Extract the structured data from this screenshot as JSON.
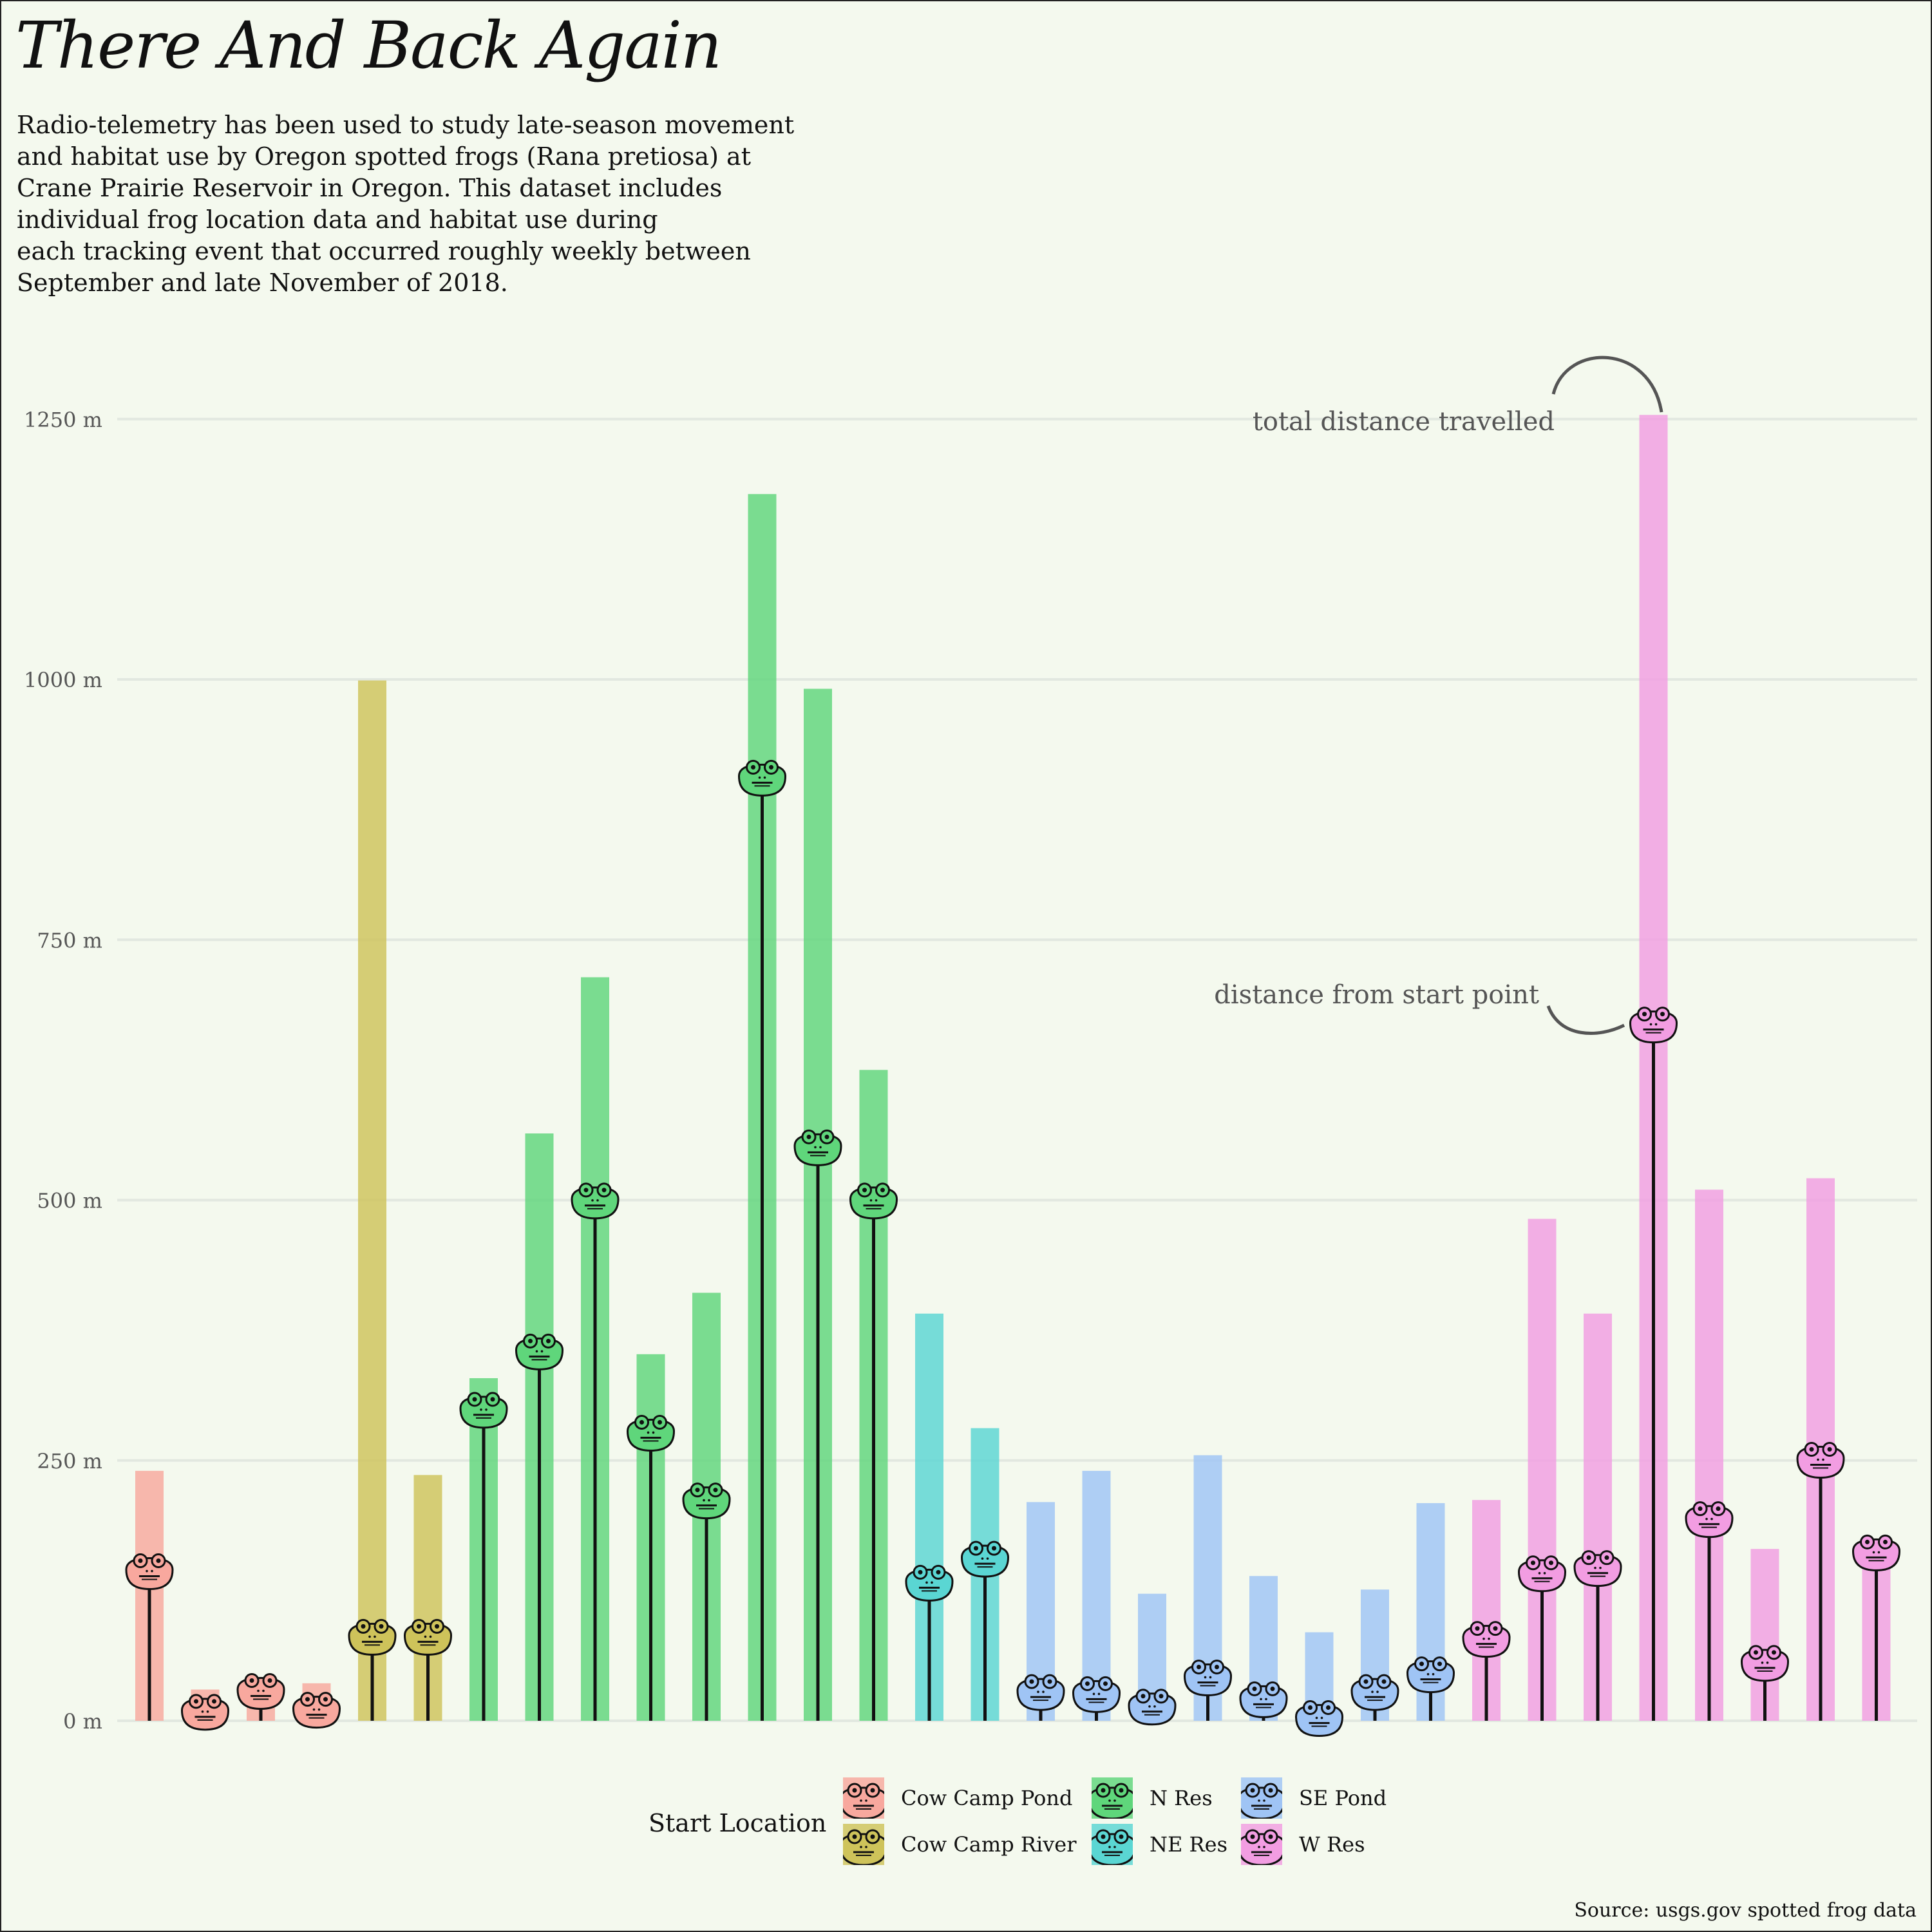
{
  "title": "There And Back Again",
  "subtitle": "Radio-telemetry has been used to study late-season movement\nand habitat use by Oregon spotted frogs (Rana pretiosa) at\nCrane Prairie Reservoir in Oregon. This dataset includes\nindividual frog location data and habitat use during\neach tracking event that occurred roughly weekly between\nSeptember and late November of 2018.",
  "caption": "Source: usgs.gov spotted frog data",
  "annotations": {
    "total": "total distance travelled",
    "start": "distance from start point"
  },
  "legend": {
    "title": "Start Location",
    "items": [
      {
        "label": "Cow Camp Pond",
        "color": "#f8a89e"
      },
      {
        "label": "Cow Camp River",
        "color": "#cec35a"
      },
      {
        "label": "N Res",
        "color": "#5fd67b"
      },
      {
        "label": "NE Res",
        "color": "#5ad6d3"
      },
      {
        "label": "SE Pond",
        "color": "#9fc4f5"
      },
      {
        "label": "W Res",
        "color": "#f29de2"
      }
    ]
  },
  "chart_data": {
    "type": "bar",
    "title": "There And Back Again",
    "xlabel": "",
    "ylabel": "",
    "ylim": [
      0,
      1300
    ],
    "yticks": [
      0,
      250,
      500,
      750,
      1000,
      1250
    ],
    "ytick_labels": [
      "0 m",
      "250 m",
      "500 m",
      "750 m",
      "1000 m",
      "1250 m"
    ],
    "grid": true,
    "legend_position": "bottom",
    "series": [
      {
        "name": "total distance travelled",
        "mark": "bar"
      },
      {
        "name": "distance from start point",
        "mark": "lollipop-frog"
      }
    ],
    "frogs": [
      {
        "location": "Cow Camp Pond",
        "total": 240,
        "start": 145
      },
      {
        "location": "Cow Camp Pond",
        "total": 30,
        "start": 10
      },
      {
        "location": "Cow Camp Pond",
        "total": 30,
        "start": 30
      },
      {
        "location": "Cow Camp Pond",
        "total": 36,
        "start": 12
      },
      {
        "location": "Cow Camp River",
        "total": 999,
        "start": 82
      },
      {
        "location": "Cow Camp River",
        "total": 236,
        "start": 82
      },
      {
        "location": "N Res",
        "total": 329,
        "start": 300
      },
      {
        "location": "N Res",
        "total": 564,
        "start": 356
      },
      {
        "location": "N Res",
        "total": 714,
        "start": 501
      },
      {
        "location": "N Res",
        "total": 352,
        "start": 278
      },
      {
        "location": "N Res",
        "total": 411,
        "start": 213
      },
      {
        "location": "N Res",
        "total": 1178,
        "start": 907
      },
      {
        "location": "N Res",
        "total": 991,
        "start": 552
      },
      {
        "location": "N Res",
        "total": 625,
        "start": 501
      },
      {
        "location": "NE Res",
        "total": 391,
        "start": 134
      },
      {
        "location": "NE Res",
        "total": 281,
        "start": 157
      },
      {
        "location": "SE Pond",
        "total": 210,
        "start": 29
      },
      {
        "location": "SE Pond",
        "total": 240,
        "start": 27
      },
      {
        "location": "SE Pond",
        "total": 122,
        "start": 15
      },
      {
        "location": "SE Pond",
        "total": 255,
        "start": 43
      },
      {
        "location": "SE Pond",
        "total": 139,
        "start": 22
      },
      {
        "location": "SE Pond",
        "total": 85,
        "start": 4
      },
      {
        "location": "SE Pond",
        "total": 126,
        "start": 29
      },
      {
        "location": "SE Pond",
        "total": 209,
        "start": 46
      },
      {
        "location": "W Res",
        "total": 212,
        "start": 80
      },
      {
        "location": "W Res",
        "total": 482,
        "start": 143
      },
      {
        "location": "W Res",
        "total": 391,
        "start": 148
      },
      {
        "location": "W Res",
        "total": 1254,
        "start": 670
      },
      {
        "location": "W Res",
        "total": 510,
        "start": 195
      },
      {
        "location": "W Res",
        "total": 165,
        "start": 57
      },
      {
        "location": "W Res",
        "total": 521,
        "start": 252
      },
      {
        "location": "W Res",
        "total": 163,
        "start": 163
      }
    ]
  }
}
